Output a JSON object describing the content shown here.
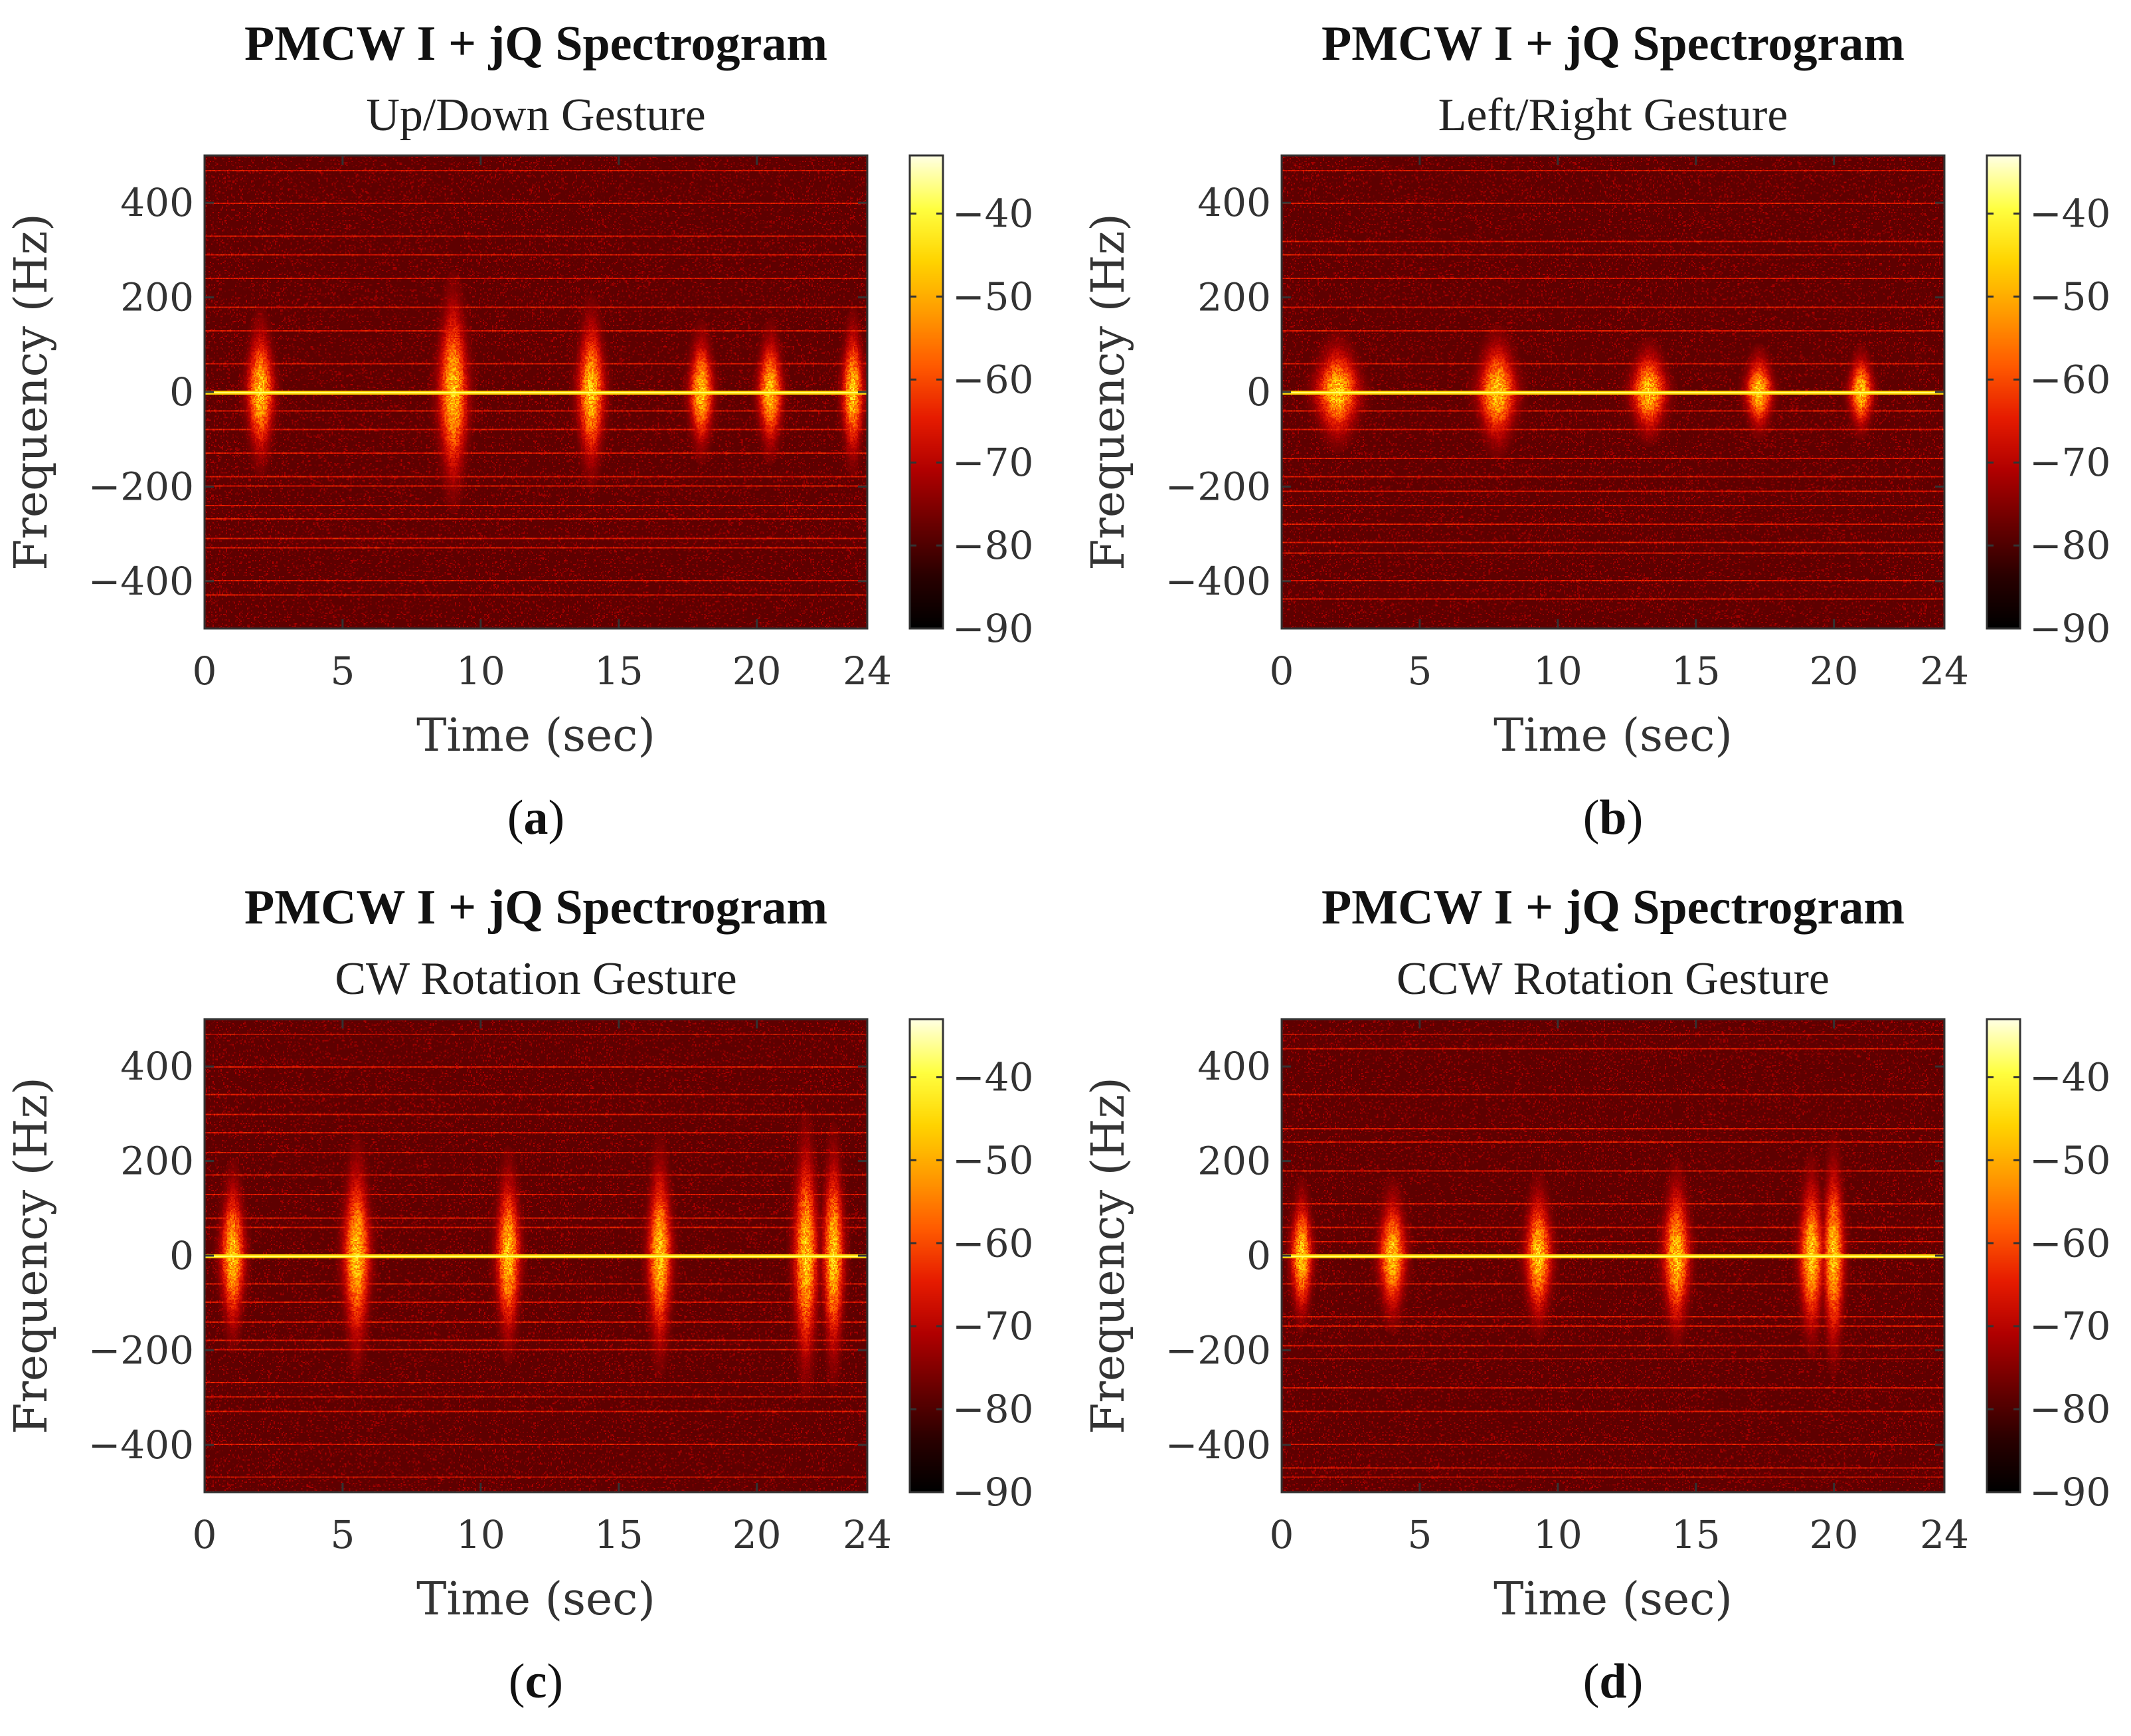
{
  "colors": {
    "colormap": [
      "#000000",
      "#2a0000",
      "#6b0000",
      "#b00000",
      "#e61b00",
      "#ff5a00",
      "#ff9a00",
      "#ffd400",
      "#ffff40",
      "#ffffe0"
    ],
    "axis": "#333333",
    "background": "#ffffff"
  },
  "chart_data": [
    {
      "type": "heatmap",
      "id": "a",
      "caption": "(a)",
      "caption_letter": "a",
      "title": "PMCW I + jQ Spectrogram",
      "subtitle": "Up/Down Gesture",
      "xlabel": "Time (sec)",
      "ylabel": "Frequency (Hz)",
      "xlim": [
        0,
        24
      ],
      "ylim": [
        -500,
        500
      ],
      "xticks": [
        0,
        5,
        10,
        15,
        20,
        24
      ],
      "xtick_labels": [
        "0",
        "5",
        "10",
        "15",
        "20",
        "24"
      ],
      "yticks": [
        400,
        200,
        0,
        -200,
        -400
      ],
      "ytick_labels": [
        "400",
        "200",
        "0",
        "−200",
        "−400"
      ],
      "colorbar_range_db": [
        -90,
        -33
      ],
      "colorbar_ticks": [
        -40,
        -50,
        -60,
        -70,
        -80,
        -90
      ],
      "colorbar_tick_labels": [
        "−40",
        "−50",
        "−60",
        "−70",
        "−80",
        "−90"
      ],
      "dc_line_hz": 0,
      "gesture_events": [
        {
          "t": 2.0,
          "spread_hz": 140,
          "width_s": 1.0
        },
        {
          "t": 9.0,
          "spread_hz": 200,
          "width_s": 1.1
        },
        {
          "t": 14.0,
          "spread_hz": 160,
          "width_s": 1.0
        },
        {
          "t": 18.0,
          "spread_hz": 120,
          "width_s": 0.9
        },
        {
          "t": 20.5,
          "spread_hz": 120,
          "width_s": 0.9
        },
        {
          "t": 23.5,
          "spread_hz": 140,
          "width_s": 0.8
        }
      ],
      "spur_lines_hz": [
        470,
        400,
        330,
        290,
        240,
        180,
        130,
        60,
        -40,
        -80,
        -130,
        -180,
        -200,
        -240,
        -270,
        -310,
        -330,
        -400,
        -430
      ]
    },
    {
      "type": "heatmap",
      "id": "b",
      "caption": "(b)",
      "caption_letter": "b",
      "title": "PMCW I + jQ Spectrogram",
      "subtitle": "Left/Right Gesture",
      "xlabel": "Time (sec)",
      "ylabel": "Frequency (Hz)",
      "xlim": [
        0,
        24
      ],
      "ylim": [
        -500,
        500
      ],
      "xticks": [
        0,
        5,
        10,
        15,
        20,
        24
      ],
      "xtick_labels": [
        "0",
        "5",
        "10",
        "15",
        "20",
        "24"
      ],
      "yticks": [
        400,
        200,
        0,
        -200,
        -400
      ],
      "ytick_labels": [
        "400",
        "200",
        "0",
        "−200",
        "−400"
      ],
      "colorbar_range_db": [
        -90,
        -33
      ],
      "colorbar_ticks": [
        -40,
        -50,
        -60,
        -70,
        -80,
        -90
      ],
      "colorbar_tick_labels": [
        "−40",
        "−50",
        "−60",
        "−70",
        "−80",
        "−90"
      ],
      "dc_line_hz": 0,
      "gesture_events": [
        {
          "t": 2.0,
          "spread_hz": 100,
          "width_s": 1.6
        },
        {
          "t": 7.8,
          "spread_hz": 110,
          "width_s": 1.4
        },
        {
          "t": 13.3,
          "spread_hz": 90,
          "width_s": 1.3
        },
        {
          "t": 17.3,
          "spread_hz": 80,
          "width_s": 1.0
        },
        {
          "t": 21.0,
          "spread_hz": 80,
          "width_s": 0.9
        }
      ],
      "spur_lines_hz": [
        470,
        400,
        320,
        290,
        240,
        180,
        130,
        60,
        -40,
        -80,
        -140,
        -180,
        -210,
        -240,
        -280,
        -320,
        -340,
        -400,
        -440
      ]
    },
    {
      "type": "heatmap",
      "id": "c",
      "caption": "(c)",
      "caption_letter": "c",
      "title": "PMCW I + jQ Spectrogram",
      "subtitle": "CW Rotation Gesture",
      "xlabel": "Time (sec)",
      "ylabel": "Frequency (Hz)",
      "xlim": [
        0,
        24
      ],
      "ylim": [
        -500,
        500
      ],
      "xticks": [
        0,
        5,
        10,
        15,
        20,
        24
      ],
      "xtick_labels": [
        "0",
        "5",
        "10",
        "15",
        "20",
        "24"
      ],
      "yticks": [
        400,
        200,
        0,
        -200,
        -400
      ],
      "ytick_labels": [
        "400",
        "200",
        "0",
        "−200",
        "−400"
      ],
      "colorbar_range_db": [
        -90,
        -33
      ],
      "colorbar_ticks": [
        -40,
        -50,
        -60,
        -70,
        -80,
        -90
      ],
      "colorbar_tick_labels": [
        "−40",
        "−50",
        "−60",
        "−70",
        "−80",
        "−90"
      ],
      "dc_line_hz": 0,
      "gesture_events": [
        {
          "t": 1.0,
          "spread_hz": 160,
          "width_s": 0.9
        },
        {
          "t": 5.5,
          "spread_hz": 200,
          "width_s": 1.0
        },
        {
          "t": 11.0,
          "spread_hz": 180,
          "width_s": 0.9
        },
        {
          "t": 16.5,
          "spread_hz": 200,
          "width_s": 0.9
        },
        {
          "t": 21.8,
          "spread_hz": 240,
          "width_s": 0.9
        },
        {
          "t": 22.8,
          "spread_hz": 220,
          "width_s": 0.8
        }
      ],
      "spur_lines_hz": [
        470,
        400,
        340,
        300,
        260,
        220,
        170,
        130,
        80,
        60,
        -60,
        -100,
        -140,
        -180,
        -200,
        -270,
        -300,
        -330,
        -400,
        -470
      ]
    },
    {
      "type": "heatmap",
      "id": "d",
      "caption": "(d)",
      "caption_letter": "d",
      "title": "PMCW I + jQ Spectrogram",
      "subtitle": "CCW Rotation Gesture",
      "xlabel": "Time (sec)",
      "ylabel": "Frequency (Hz)",
      "xlim": [
        0,
        24
      ],
      "ylim": [
        -500,
        500
      ],
      "xticks": [
        0,
        5,
        10,
        15,
        20,
        24
      ],
      "xtick_labels": [
        "0",
        "5",
        "10",
        "15",
        "20",
        "24"
      ],
      "yticks": [
        400,
        200,
        0,
        -200,
        -400
      ],
      "ytick_labels": [
        "400",
        "200",
        "0",
        "−200",
        "−400"
      ],
      "colorbar_range_db": [
        -90,
        -33
      ],
      "colorbar_ticks": [
        -40,
        -50,
        -60,
        -70,
        -80,
        -90
      ],
      "colorbar_tick_labels": [
        "−40",
        "−50",
        "−60",
        "−70",
        "−80",
        "−90"
      ],
      "dc_line_hz": 0,
      "gesture_events": [
        {
          "t": 0.7,
          "spread_hz": 130,
          "width_s": 0.8
        },
        {
          "t": 4.0,
          "spread_hz": 130,
          "width_s": 1.0
        },
        {
          "t": 9.3,
          "spread_hz": 140,
          "width_s": 1.0
        },
        {
          "t": 14.3,
          "spread_hz": 160,
          "width_s": 1.0
        },
        {
          "t": 19.2,
          "spread_hz": 170,
          "width_s": 0.9
        },
        {
          "t": 20.0,
          "spread_hz": 200,
          "width_s": 0.8
        }
      ],
      "spur_lines_hz": [
        470,
        440,
        340,
        270,
        240,
        180,
        110,
        60,
        30,
        -60,
        -130,
        -150,
        -190,
        -220,
        -280,
        -330,
        -400,
        -450,
        -470
      ]
    }
  ]
}
